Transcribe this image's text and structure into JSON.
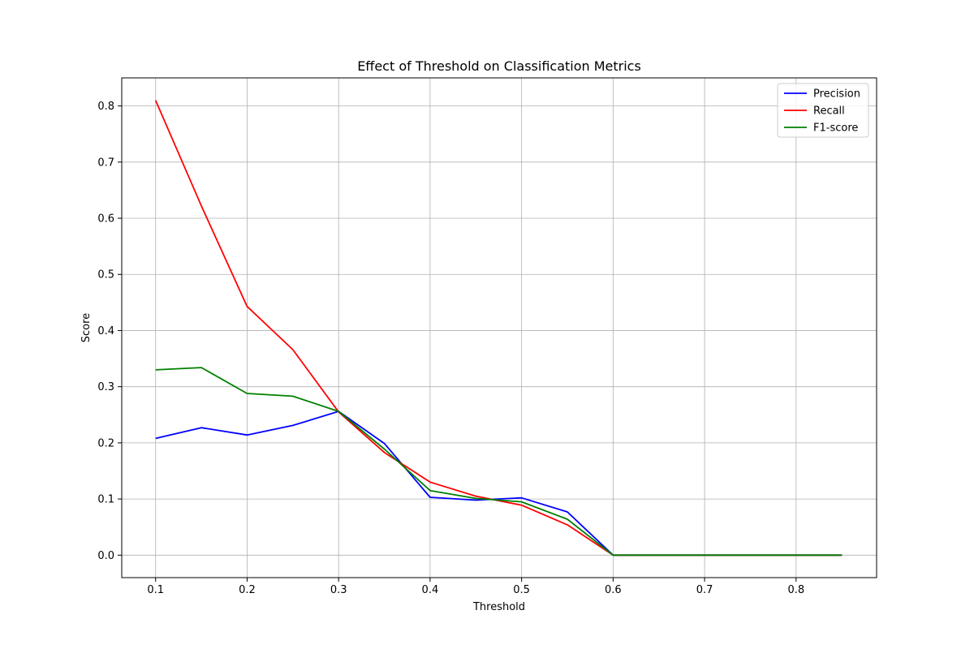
{
  "chart_data": {
    "type": "line",
    "title": "Effect of Threshold on Classification Metrics",
    "xlabel": "Threshold",
    "ylabel": "Score",
    "xlim": [
      0.063,
      0.888
    ],
    "ylim": [
      -0.04,
      0.85
    ],
    "x_ticks": [
      0.1,
      0.2,
      0.3,
      0.4,
      0.5,
      0.6,
      0.7,
      0.8
    ],
    "x_tick_labels": [
      "0.1",
      "0.2",
      "0.3",
      "0.4",
      "0.5",
      "0.6",
      "0.7",
      "0.8"
    ],
    "y_ticks": [
      0.0,
      0.1,
      0.2,
      0.3,
      0.4,
      0.5,
      0.6,
      0.7,
      0.8
    ],
    "y_tick_labels": [
      "0.0",
      "0.1",
      "0.2",
      "0.3",
      "0.4",
      "0.5",
      "0.6",
      "0.7",
      "0.8"
    ],
    "grid": true,
    "legend_position": "top-right",
    "x": [
      0.1,
      0.15,
      0.2,
      0.25,
      0.3,
      0.35,
      0.4,
      0.45,
      0.5,
      0.55,
      0.6,
      0.65,
      0.7,
      0.75,
      0.8,
      0.85
    ],
    "series": [
      {
        "name": "Precision",
        "color": "#0000ff",
        "values": [
          0.208,
          0.227,
          0.214,
          0.231,
          0.256,
          0.199,
          0.103,
          0.098,
          0.102,
          0.077,
          0.0,
          0.0,
          0.0,
          0.0,
          0.0,
          0.0
        ]
      },
      {
        "name": "Recall",
        "color": "#ff0000",
        "values": [
          0.81,
          0.622,
          0.443,
          0.366,
          0.255,
          0.183,
          0.13,
          0.105,
          0.089,
          0.054,
          0.0,
          0.0,
          0.0,
          0.0,
          0.0,
          0.0
        ]
      },
      {
        "name": "F1-score",
        "color": "#008000",
        "values": [
          0.33,
          0.334,
          0.288,
          0.283,
          0.256,
          0.189,
          0.115,
          0.101,
          0.095,
          0.064,
          0.0,
          0.0,
          0.0,
          0.0,
          0.0,
          0.0
        ]
      }
    ]
  }
}
